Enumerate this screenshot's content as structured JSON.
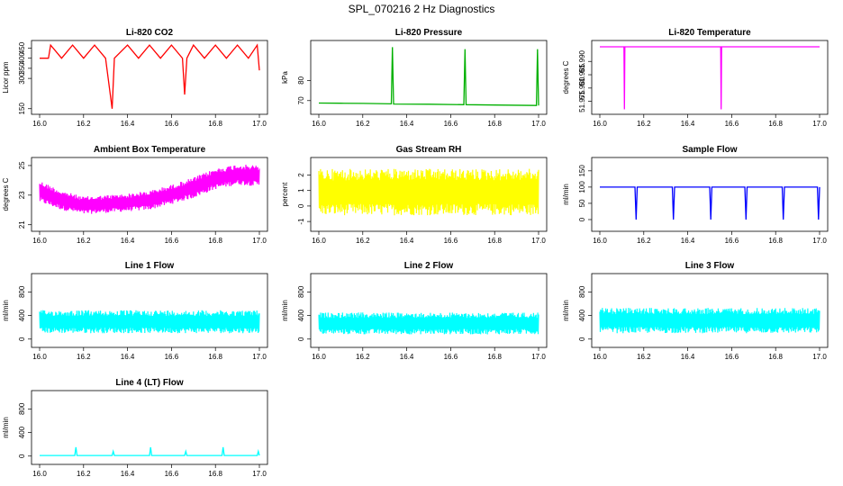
{
  "figure_title": "SPL_070216  2 Hz Diagnostics",
  "colors": {
    "red": "#ff0000",
    "green": "#00b000",
    "magenta": "#ff00ff",
    "yellow": "#ffff00",
    "blue": "#0000ff",
    "cyan": "#00ffff"
  },
  "chart_data": [
    {
      "type": "line",
      "title": "Li-820 CO2",
      "xlabel": "",
      "ylabel": "Licor ppm",
      "color": "#ff0000",
      "xlim": [
        16.0,
        17.0
      ],
      "ylim": [
        140,
        470
      ],
      "xticks": [
        "16.0",
        "16.2",
        "16.4",
        "16.6",
        "16.8",
        "17.0"
      ],
      "yticks": [
        150,
        300,
        350,
        400,
        450
      ],
      "x": [
        16.0,
        16.04,
        16.05,
        16.1,
        16.15,
        16.2,
        16.25,
        16.3,
        16.33,
        16.34,
        16.4,
        16.45,
        16.5,
        16.55,
        16.6,
        16.65,
        16.66,
        16.67,
        16.7,
        16.75,
        16.8,
        16.85,
        16.9,
        16.95,
        16.99,
        17.0
      ],
      "y": [
        400,
        400,
        465,
        400,
        465,
        400,
        465,
        400,
        150,
        400,
        465,
        400,
        465,
        400,
        465,
        400,
        220,
        400,
        465,
        400,
        465,
        400,
        465,
        400,
        465,
        340
      ]
    },
    {
      "type": "line",
      "title": "Li-820 Pressure",
      "xlabel": "",
      "ylabel": "kPa",
      "color": "#00b000",
      "xlim": [
        16.0,
        17.0
      ],
      "ylim": [
        65,
        98
      ],
      "xticks": [
        "16.0",
        "16.2",
        "16.4",
        "16.6",
        "16.8",
        "17.0"
      ],
      "yticks": [
        70,
        80
      ],
      "x": [
        16.0,
        16.1,
        16.2,
        16.33,
        16.335,
        16.34,
        16.5,
        16.66,
        16.665,
        16.67,
        16.8,
        16.99,
        16.995,
        17.0
      ],
      "y": [
        68.8,
        68.7,
        68.6,
        68.4,
        96.5,
        68.3,
        68.2,
        68.0,
        95.5,
        68.0,
        67.8,
        67.6,
        95.5,
        67.6
      ]
    },
    {
      "type": "line",
      "title": "Li-820 Temperature",
      "xlabel": "",
      "ylabel": "degrees C",
      "color": "#ff00ff",
      "xlim": [
        16.0,
        17.0
      ],
      "ylim": [
        51.9715,
        51.9965
      ],
      "xticks": [
        "16.0",
        "16.2",
        "16.4",
        "16.6",
        "16.8",
        "17.0"
      ],
      "yticks": [
        "51.975",
        "51.980",
        "51.985",
        "51.990"
      ],
      "x": [
        16.0,
        16.11,
        16.112,
        16.114,
        16.55,
        16.552,
        16.554,
        17.0
      ],
      "y": [
        51.9955,
        51.9955,
        51.972,
        51.9955,
        51.9955,
        51.972,
        51.9955,
        51.9955
      ]
    },
    {
      "type": "line",
      "title": "Ambient Box Temperature",
      "xlabel": "",
      "ylabel": "degrees C",
      "color": "#ff00ff",
      "xlim": [
        16.0,
        17.0
      ],
      "ylim": [
        20.8,
        25.3
      ],
      "xticks": [
        "16.0",
        "16.2",
        "16.4",
        "16.6",
        "16.8",
        "17.0"
      ],
      "yticks": [
        21,
        23,
        25
      ],
      "x": [
        16.0,
        16.1,
        16.2,
        16.3,
        16.4,
        16.5,
        16.6,
        16.7,
        16.8,
        16.9,
        17.0
      ],
      "y_min": [
        22.5,
        22.0,
        21.7,
        21.8,
        21.9,
        22.0,
        22.4,
        22.8,
        23.4,
        23.7,
        23.6
      ],
      "y_max": [
        24.0,
        23.3,
        22.9,
        23.0,
        23.1,
        23.3,
        23.7,
        24.2,
        24.8,
        25.1,
        25.0
      ]
    },
    {
      "type": "line",
      "title": "Gas Stream RH",
      "xlabel": "",
      "ylabel": "percent",
      "color": "#ffff00",
      "xlim": [
        16.0,
        17.0
      ],
      "ylim": [
        -1.4,
        2.9
      ],
      "xticks": [
        "16.0",
        "16.2",
        "16.4",
        "16.6",
        "16.8",
        "17.0"
      ],
      "yticks": [
        -1,
        0,
        1,
        2
      ],
      "x": [
        16.0,
        16.5,
        17.0
      ],
      "y_min": [
        -0.6,
        -0.6,
        -0.6
      ],
      "y_max": [
        2.4,
        2.4,
        2.4
      ]
    },
    {
      "type": "line",
      "title": "Sample Flow",
      "xlabel": "",
      "ylabel": "ml/min",
      "color": "#0000ff",
      "xlim": [
        16.0,
        17.0
      ],
      "ylim": [
        -25,
        180
      ],
      "xticks": [
        "16.0",
        "16.2",
        "16.4",
        "16.6",
        "16.8",
        "17.0"
      ],
      "yticks": [
        0,
        50,
        100,
        150
      ],
      "x": [
        16.0,
        16.16,
        16.165,
        16.17,
        16.33,
        16.335,
        16.34,
        16.5,
        16.505,
        16.51,
        16.66,
        16.665,
        16.67,
        16.83,
        16.835,
        16.84,
        16.99,
        16.995,
        17.0
      ],
      "y": [
        100,
        100,
        0,
        100,
        100,
        0,
        100,
        100,
        0,
        100,
        100,
        0,
        100,
        100,
        0,
        100,
        100,
        0,
        100
      ]
    },
    {
      "type": "line",
      "title": "Line 1 Flow",
      "xlabel": "",
      "ylabel": "ml/min",
      "color": "#00ffff",
      "xlim": [
        16.0,
        17.0
      ],
      "ylim": [
        -80,
        1050
      ],
      "xticks": [
        "16.0",
        "16.2",
        "16.4",
        "16.6",
        "16.8",
        "17.0"
      ],
      "yticks": [
        0,
        400,
        800
      ],
      "x": [
        16.0,
        17.0
      ],
      "y_min": [
        100,
        100
      ],
      "y_max": [
        490,
        490
      ]
    },
    {
      "type": "line",
      "title": "Line 2 Flow",
      "xlabel": "",
      "ylabel": "ml/min",
      "color": "#00ffff",
      "xlim": [
        16.0,
        17.0
      ],
      "ylim": [
        -80,
        1050
      ],
      "xticks": [
        "16.0",
        "16.2",
        "16.4",
        "16.6",
        "16.8",
        "17.0"
      ],
      "yticks": [
        0,
        400,
        800
      ],
      "x": [
        16.0,
        17.0
      ],
      "y_min": [
        80,
        80
      ],
      "y_max": [
        450,
        450
      ]
    },
    {
      "type": "line",
      "title": "Line 3 Flow",
      "xlabel": "",
      "ylabel": "ml/min",
      "color": "#00ffff",
      "xlim": [
        16.0,
        17.0
      ],
      "ylim": [
        -80,
        1050
      ],
      "xticks": [
        "16.0",
        "16.2",
        "16.4",
        "16.6",
        "16.8",
        "17.0"
      ],
      "yticks": [
        0,
        400,
        800
      ],
      "x": [
        16.0,
        17.0
      ],
      "y_min": [
        100,
        100
      ],
      "y_max": [
        530,
        530
      ]
    },
    {
      "type": "line",
      "title": "Line 4 (LT) Flow",
      "xlabel": "",
      "ylabel": "ml/min",
      "color": "#00ffff",
      "xlim": [
        16.0,
        17.0
      ],
      "ylim": [
        -80,
        1050
      ],
      "xticks": [
        "16.0",
        "16.2",
        "16.4",
        "16.6",
        "16.8",
        "17.0"
      ],
      "yticks": [
        0,
        400,
        800
      ],
      "x": [
        16.0,
        16.16,
        16.165,
        16.17,
        16.33,
        16.335,
        16.34,
        16.5,
        16.505,
        16.51,
        16.66,
        16.665,
        16.67,
        16.83,
        16.835,
        16.84,
        16.99,
        16.995,
        17.0
      ],
      "y": [
        10,
        10,
        150,
        10,
        10,
        80,
        10,
        10,
        150,
        10,
        10,
        80,
        10,
        10,
        150,
        10,
        10,
        80,
        10
      ]
    }
  ]
}
